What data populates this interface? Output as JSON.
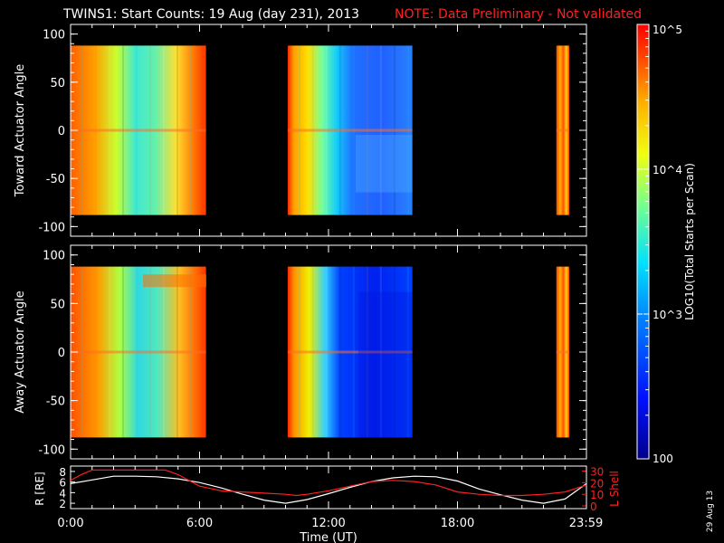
{
  "title": {
    "main": "TWINS1: Start Counts: 19 Aug (day 231), 2013",
    "note": "NOTE: Data Preliminary - Not validated"
  },
  "date_stamp": "29 Aug 13",
  "colors": {
    "note": "#ff2020",
    "lshell": "#ff2020",
    "radius": "#ffffff",
    "background": "#000000",
    "axes": "#ffffff"
  },
  "chart_data": [
    {
      "type": "heatmap",
      "panel": "top",
      "ylabel": "Toward Actuator Angle",
      "ylim": [
        -110,
        110
      ],
      "yticks": [
        "100",
        "50",
        "0",
        "-50",
        "-100"
      ],
      "ytick_values": [
        100,
        50,
        0,
        -50,
        -100
      ],
      "data_range_deg": [
        -88,
        88
      ],
      "xlim_hours": [
        0,
        24
      ],
      "data_segments_hours": [
        [
          0,
          6.3
        ],
        [
          10.1,
          15.9
        ],
        [
          22.6,
          23.2
        ]
      ],
      "description_values": {
        "early_morning": "high (~10^4.5 to 10^5)",
        "midday": "lower (~10^3 to 10^3.5)",
        "late": "high"
      }
    },
    {
      "type": "heatmap",
      "panel": "middle",
      "ylabel": "Away Actuator Angle",
      "ylim": [
        -110,
        110
      ],
      "yticks": [
        "100",
        "50",
        "0",
        "-50",
        "-100"
      ],
      "ytick_values": [
        100,
        50,
        0,
        -50,
        -100
      ],
      "data_range_deg": [
        -88,
        88
      ],
      "xlim_hours": [
        0,
        24
      ],
      "data_segments_hours": [
        [
          0,
          6.3
        ],
        [
          10.1,
          15.9
        ],
        [
          22.6,
          23.2
        ]
      ]
    },
    {
      "type": "line",
      "panel": "bottom",
      "ylabel_left": "R [RE]",
      "ylabel_right": "L Shell",
      "yticks_left": [
        "8",
        "6",
        "4",
        "2"
      ],
      "ytick_values_left": [
        8,
        6,
        4,
        2
      ],
      "yticks_right": [
        "30",
        "20",
        "10",
        "0"
      ],
      "ytick_values_right": [
        30,
        20,
        10,
        0
      ],
      "xlabel": "Time (UT)",
      "xticks": [
        "0:00",
        "6:00",
        "12:00",
        "18:00",
        "23:59"
      ],
      "xtick_values": [
        0,
        6,
        12,
        18,
        23.98
      ],
      "series": [
        {
          "name": "R",
          "axis": "left",
          "x": [
            0,
            1,
            2,
            3,
            4,
            5,
            6,
            7,
            8,
            9,
            10,
            11,
            12,
            13,
            14,
            15,
            16,
            17,
            18,
            19,
            20,
            21,
            22,
            23,
            24
          ],
          "y": [
            5.7,
            6.4,
            7.1,
            7.1,
            7.0,
            6.6,
            5.9,
            4.9,
            3.7,
            2.6,
            2.0,
            2.7,
            3.8,
            5.0,
            6.1,
            6.8,
            7.1,
            7.0,
            6.2,
            4.7,
            3.6,
            2.6,
            2.0,
            2.8,
            5.7
          ]
        },
        {
          "name": "L Shell",
          "axis": "right",
          "x": [
            0,
            0.5,
            1.0,
            4.4,
            5.0,
            6.0,
            7,
            8,
            9,
            10,
            10.5,
            11,
            12,
            13,
            14,
            15,
            16,
            17,
            18,
            19,
            20,
            21,
            22,
            23,
            24
          ],
          "y": [
            22,
            27,
            31,
            31,
            27,
            17,
            13,
            12,
            11,
            10,
            9,
            10,
            13,
            17,
            21,
            22,
            21,
            18,
            12,
            10,
            9,
            9,
            10,
            12,
            18
          ]
        }
      ]
    },
    {
      "type": "colorbar",
      "label": "LOG10(Total Starts per Scan)",
      "ticks": [
        "10^5",
        "10^4",
        "10^3",
        "100"
      ],
      "tick_values": [
        100000,
        10000,
        1000,
        100
      ],
      "scale": "log",
      "range": [
        100,
        100000
      ]
    }
  ]
}
